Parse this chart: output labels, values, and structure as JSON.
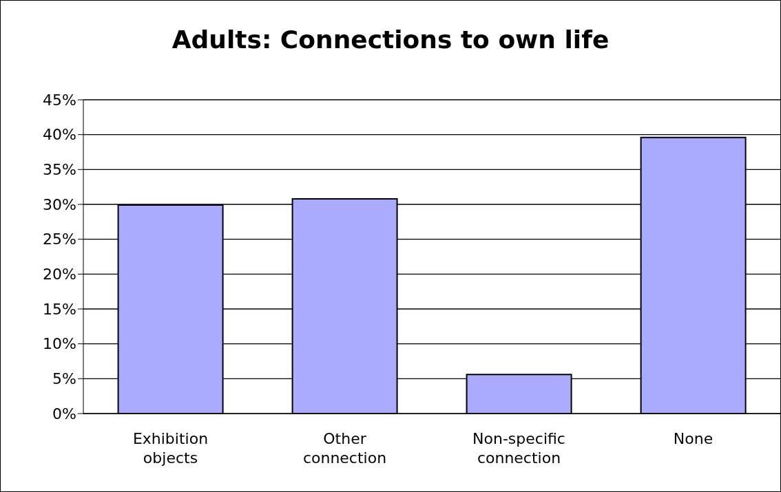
{
  "chart_data": {
    "type": "bar",
    "title": "Adults: Connections to own life",
    "categories": [
      "Exhibition objects",
      "Other connection",
      "Non-specific connection",
      "None"
    ],
    "values": [
      29.9,
      30.8,
      5.6,
      39.6
    ],
    "color": "#aaaaff",
    "ylim": [
      0,
      45
    ],
    "yticks": [
      {
        "value": 0,
        "label": "0%"
      },
      {
        "value": 5,
        "label": "5%"
      },
      {
        "value": 10,
        "label": "10%"
      },
      {
        "value": 15,
        "label": "15%"
      },
      {
        "value": 20,
        "label": "20%"
      },
      {
        "value": 25,
        "label": "25%"
      },
      {
        "value": 30,
        "label": "30%"
      },
      {
        "value": 35,
        "label": "35%"
      },
      {
        "value": 40,
        "label": "40%"
      },
      {
        "value": 45,
        "label": "45%"
      }
    ],
    "grid": "y",
    "legend": false
  }
}
